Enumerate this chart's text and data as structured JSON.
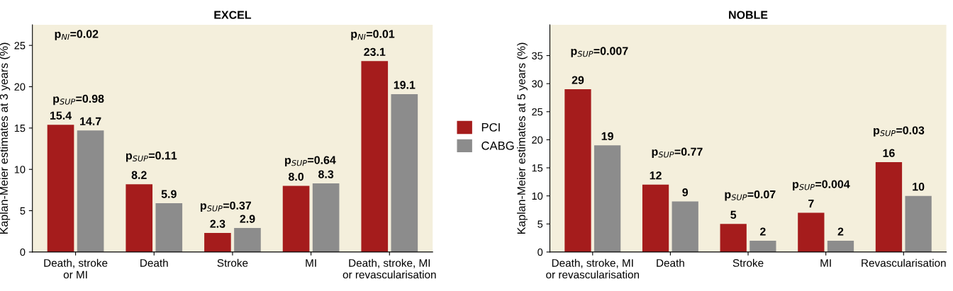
{
  "chart_data": [
    {
      "type": "bar",
      "title": "EXCEL",
      "ylabel": "Kaplan-Meier estimates at 3 years (%)",
      "categories": [
        "Death, stroke\nor MI",
        "Death",
        "Stroke",
        "MI",
        "Death, stroke, MI\nor revascularisation"
      ],
      "series": [
        {
          "name": "PCI",
          "color": "#a51c1c",
          "values": [
            15.4,
            8.2,
            2.3,
            8.0,
            23.1
          ],
          "value_labels": [
            "15.4",
            "8.2",
            "2.3",
            "8.0",
            "23.1"
          ]
        },
        {
          "name": "CABG",
          "color": "#8c8c8c",
          "values": [
            14.7,
            5.9,
            2.9,
            8.3,
            19.1
          ],
          "value_labels": [
            "14.7",
            "5.9",
            "2.9",
            "8.3",
            "19.1"
          ]
        }
      ],
      "ylim": [
        0,
        27.5
      ],
      "yticks": [
        0,
        5,
        10,
        15,
        20,
        25
      ],
      "grid": false,
      "legend": "right",
      "annotations": [
        "p$_{NI}$=0.02",
        "p$_{SUP}$=0.98",
        "p$_{SUP}$=0.11",
        "p$_{SUP}$=0.37",
        "p$_{SUP}$=0.64",
        "p$_{NI}$=0.01"
      ]
    },
    {
      "type": "bar",
      "title": "NOBLE",
      "ylabel": "Kaplan-Meier estimates at 5 years (%)",
      "categories": [
        "Death, stroke, MI\nor revascularisation",
        "Death",
        "Stroke",
        "MI",
        "Revascularisation"
      ],
      "series": [
        {
          "color": "#a51c1c",
          "values": [
            29,
            12,
            5,
            7,
            16
          ]
        },
        {
          "color": "#8c8c8c",
          "values": [
            19,
            9,
            2,
            2,
            10
          ]
        }
      ],
      "ylim": [
        0,
        40.5
      ],
      "yticks": [
        0,
        5,
        10,
        15,
        20,
        25,
        30,
        35
      ],
      "data_labels": true,
      "grid": false,
      "annotations": [
        "p$_{SUP}$=0.007",
        "p$_{SUP}$=0.77",
        "p$_{SUP}$=0.07",
        "p$_{SUP}$=0.004",
        "p$_{SUP}$=0.03"
      ]
    }
  ]
}
